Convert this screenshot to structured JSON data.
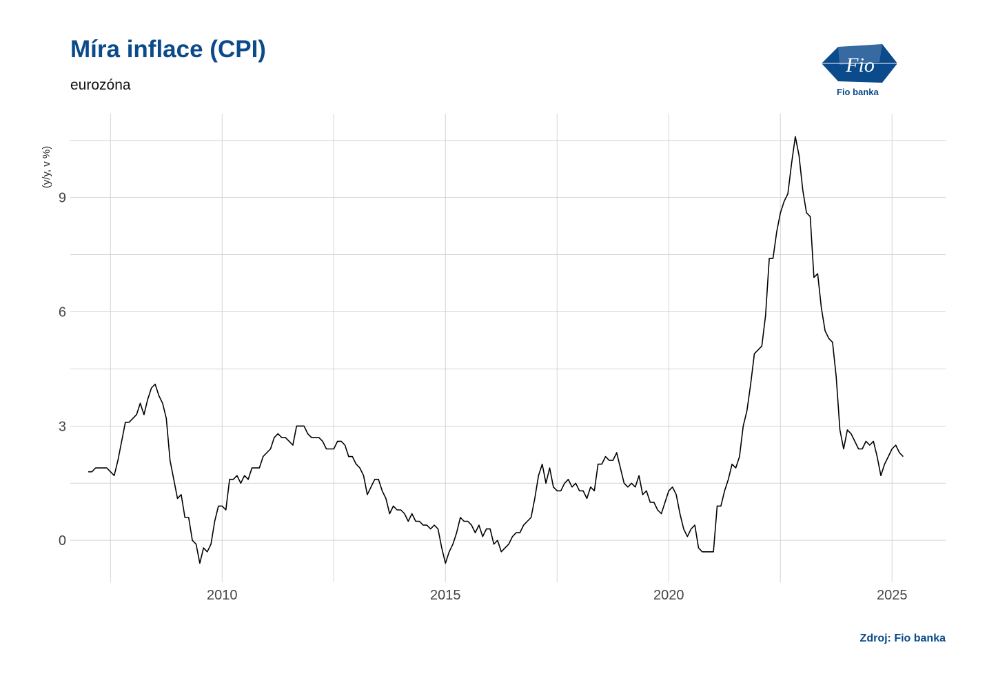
{
  "header": {
    "title": "Míra inflace (CPI)",
    "subtitle": "eurozóna",
    "logo_text": "Fio banka",
    "logo_mark": "Fio"
  },
  "footer": {
    "source": "Zdroj: Fio banka"
  },
  "colors": {
    "brand": "#0b4a8b",
    "line": "#000000",
    "grid": "#d4d4d4"
  },
  "chart_data": {
    "type": "line",
    "ylabel": "(y/y, v %)",
    "xlabel": "",
    "xlim": [
      2006.6,
      2026.2
    ],
    "ylim": [
      -1.1,
      11.2
    ],
    "x_ticks": [
      2010,
      2015,
      2020,
      2025
    ],
    "x_ticks_minor": [
      2007.5,
      2012.5,
      2017.5,
      2022.5
    ],
    "y_ticks": [
      0,
      3,
      6,
      9
    ],
    "y_ticks_minor": [
      -1.5,
      1.5,
      4.5,
      7.5,
      10.5
    ],
    "grid": true,
    "series": [
      {
        "start": "2007-01",
        "frequency": "monthly",
        "values": [
          1.8,
          1.8,
          1.9,
          1.9,
          1.9,
          1.9,
          1.8,
          1.7,
          2.1,
          2.6,
          3.1,
          3.1,
          3.2,
          3.3,
          3.6,
          3.3,
          3.7,
          4.0,
          4.1,
          3.8,
          3.6,
          3.2,
          2.1,
          1.6,
          1.1,
          1.2,
          0.6,
          0.6,
          0.0,
          -0.1,
          -0.6,
          -0.2,
          -0.3,
          -0.1,
          0.5,
          0.9,
          0.9,
          0.8,
          1.6,
          1.6,
          1.7,
          1.5,
          1.7,
          1.6,
          1.9,
          1.9,
          1.9,
          2.2,
          2.3,
          2.4,
          2.7,
          2.8,
          2.7,
          2.7,
          2.6,
          2.5,
          3.0,
          3.0,
          3.0,
          2.8,
          2.7,
          2.7,
          2.7,
          2.6,
          2.4,
          2.4,
          2.4,
          2.6,
          2.6,
          2.5,
          2.2,
          2.2,
          2.0,
          1.9,
          1.7,
          1.2,
          1.4,
          1.6,
          1.6,
          1.3,
          1.1,
          0.7,
          0.9,
          0.8,
          0.8,
          0.7,
          0.5,
          0.7,
          0.5,
          0.5,
          0.4,
          0.4,
          0.3,
          0.4,
          0.3,
          -0.2,
          -0.6,
          -0.3,
          -0.1,
          0.2,
          0.6,
          0.5,
          0.5,
          0.4,
          0.2,
          0.4,
          0.1,
          0.3,
          0.3,
          -0.1,
          0.0,
          -0.3,
          -0.2,
          -0.1,
          0.1,
          0.2,
          0.2,
          0.4,
          0.5,
          0.6,
          1.1,
          1.7,
          2.0,
          1.5,
          1.9,
          1.4,
          1.3,
          1.3,
          1.5,
          1.6,
          1.4,
          1.5,
          1.3,
          1.3,
          1.1,
          1.4,
          1.3,
          2.0,
          2.0,
          2.2,
          2.1,
          2.1,
          2.3,
          1.9,
          1.5,
          1.4,
          1.5,
          1.4,
          1.7,
          1.2,
          1.3,
          1.0,
          1.0,
          0.8,
          0.7,
          1.0,
          1.3,
          1.4,
          1.2,
          0.7,
          0.3,
          0.1,
          0.3,
          0.4,
          -0.2,
          -0.3,
          -0.3,
          -0.3,
          -0.3,
          0.9,
          0.9,
          1.3,
          1.6,
          2.0,
          1.9,
          2.2,
          3.0,
          3.4,
          4.1,
          4.9,
          5.0,
          5.1,
          5.9,
          7.4,
          7.4,
          8.1,
          8.6,
          8.9,
          9.1,
          9.9,
          10.6,
          10.1,
          9.2,
          8.6,
          8.5,
          6.9,
          7.0,
          6.1,
          5.5,
          5.3,
          5.2,
          4.3,
          2.9,
          2.4,
          2.9,
          2.8,
          2.6,
          2.4,
          2.4,
          2.6,
          2.5,
          2.6,
          2.2,
          1.7,
          2.0,
          2.2,
          2.4,
          2.5,
          2.3,
          2.2
        ]
      }
    ]
  }
}
